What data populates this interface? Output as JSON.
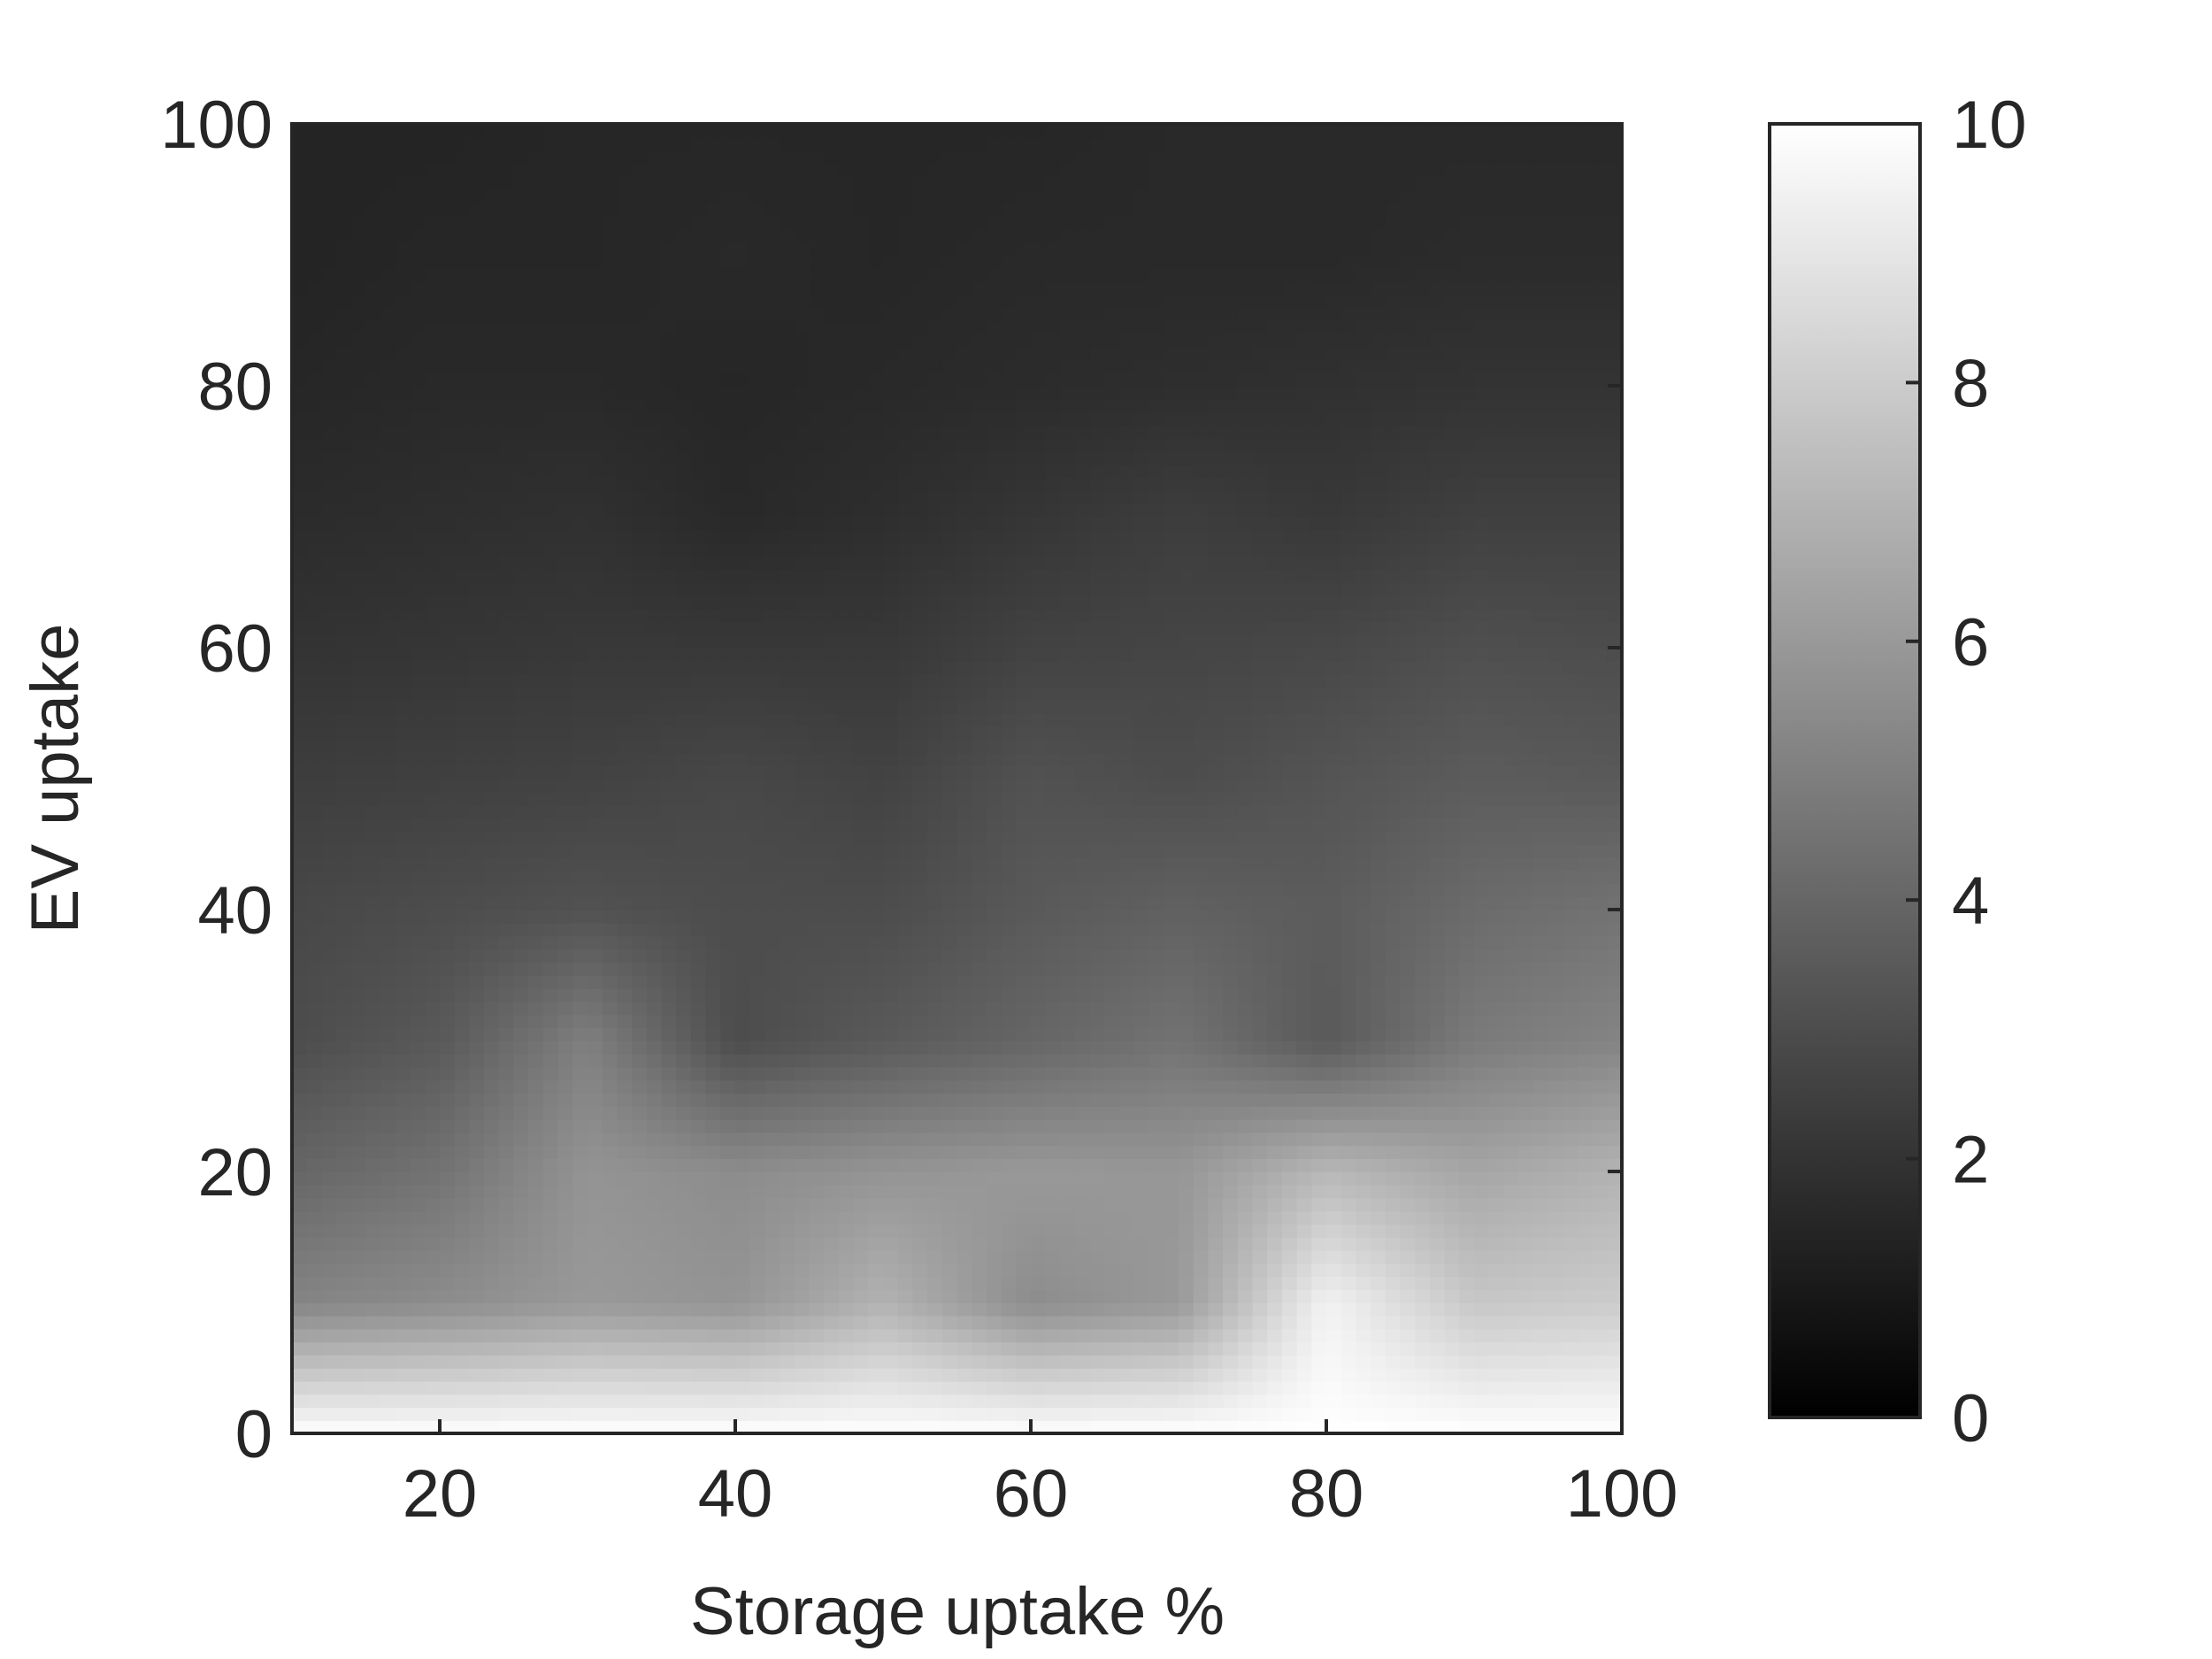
{
  "chart_data": {
    "type": "heatmap",
    "title": "",
    "xlabel": "Storage uptake %",
    "ylabel": "EV uptake",
    "xlim": [
      10,
      100
    ],
    "ylim": [
      0,
      100
    ],
    "x": [
      10,
      20,
      30,
      40,
      50,
      60,
      70,
      80,
      90,
      100
    ],
    "y": [
      0,
      10,
      20,
      30,
      40,
      50,
      60,
      70,
      80,
      90,
      100
    ],
    "z": [
      [
        10.0,
        10.0,
        10.0,
        10.0,
        10.0,
        10.0,
        10.0,
        10.0,
        10.0,
        10.0
      ],
      [
        5.2,
        5.5,
        6.0,
        5.8,
        7.0,
        5.5,
        6.0,
        9.5,
        7.8,
        8.0
      ],
      [
        4.0,
        4.5,
        5.8,
        5.5,
        5.8,
        6.0,
        5.9,
        7.2,
        6.5,
        7.0
      ],
      [
        3.0,
        3.5,
        5.0,
        3.0,
        3.5,
        4.0,
        4.5,
        3.5,
        4.8,
        5.2
      ],
      [
        2.8,
        3.0,
        3.2,
        3.0,
        3.0,
        3.5,
        3.8,
        3.6,
        4.2,
        4.5
      ],
      [
        2.4,
        2.5,
        2.6,
        2.8,
        2.6,
        3.2,
        3.0,
        3.3,
        3.6,
        3.5
      ],
      [
        2.0,
        2.1,
        2.2,
        2.2,
        2.2,
        2.6,
        2.7,
        2.8,
        3.1,
        3.0
      ],
      [
        1.7,
        1.8,
        1.9,
        1.6,
        1.8,
        2.1,
        2.4,
        2.2,
        2.5,
        2.5
      ],
      [
        1.5,
        1.6,
        1.6,
        1.5,
        1.6,
        1.7,
        1.8,
        1.9,
        2.0,
        2.0
      ],
      [
        1.4,
        1.5,
        1.5,
        1.6,
        1.5,
        1.6,
        1.6,
        1.6,
        1.7,
        1.7
      ],
      [
        1.4,
        1.4,
        1.5,
        1.5,
        1.5,
        1.5,
        1.6,
        1.6,
        1.6,
        1.6
      ]
    ],
    "x_ticks": [
      20,
      40,
      60,
      80,
      100
    ],
    "x_tick_labels": [
      "20",
      "40",
      "60",
      "80",
      "100"
    ],
    "y_ticks": [
      0,
      20,
      40,
      60,
      80,
      100
    ],
    "y_tick_labels": [
      "0",
      "20",
      "40",
      "60",
      "80",
      "100"
    ],
    "colorbar": {
      "limits": [
        0,
        10
      ],
      "ticks": [
        0,
        2,
        4,
        6,
        8,
        10
      ],
      "tick_labels": [
        "0",
        "2",
        "4",
        "6",
        "8",
        "10"
      ],
      "colormap": "gray"
    },
    "grid": false,
    "colors": {
      "axis": "#262626",
      "low": "#000000",
      "high": "#ffffff"
    }
  }
}
